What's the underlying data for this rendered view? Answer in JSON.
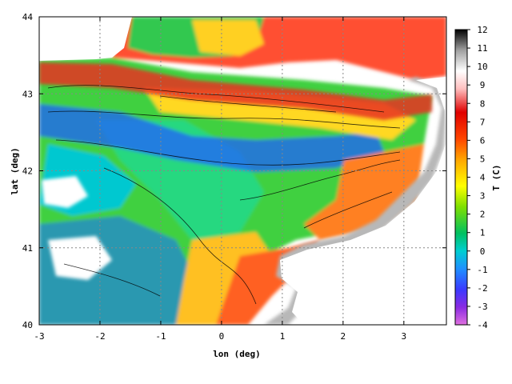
{
  "chart_data": {
    "type": "heatmap",
    "title": "",
    "xlabel": "lon (deg)",
    "ylabel": "lat (deg)",
    "colorbar_label": "T (C)",
    "xlim": [
      -3,
      3.7
    ],
    "ylim": [
      40,
      44
    ],
    "xticks": [
      "-3",
      "-2",
      "-1",
      "0",
      "1",
      "2",
      "3"
    ],
    "xtick_values": [
      -3,
      -2,
      -1,
      0,
      1,
      2,
      3
    ],
    "yticks": [
      "40",
      "41",
      "42",
      "43",
      "44"
    ],
    "ytick_values": [
      40,
      41,
      42,
      43,
      44
    ],
    "colorbar_ticks": [
      "12",
      "11",
      "10",
      "9",
      "8",
      "7",
      "6",
      "5",
      "4",
      "3",
      "2",
      "1",
      "0",
      "-1",
      "-2",
      "-3",
      "-4"
    ],
    "colorbar_values": [
      12,
      11,
      10,
      9,
      8,
      7,
      6,
      5,
      4,
      3,
      2,
      1,
      0,
      -1,
      -2,
      -3,
      -4
    ],
    "colorbar_range": [
      -4,
      12
    ],
    "grid": true,
    "grid_style": "dotted",
    "colormap": [
      "#e070e0",
      "#8a2be2",
      "#3a3aff",
      "#1e90ff",
      "#00ced1",
      "#00c060",
      "#7fe000",
      "#ffff00",
      "#ffa500",
      "#ff4500",
      "#e00000",
      "#ffc0c0",
      "#ffffff",
      "#a0a0a0",
      "#000000"
    ]
  }
}
